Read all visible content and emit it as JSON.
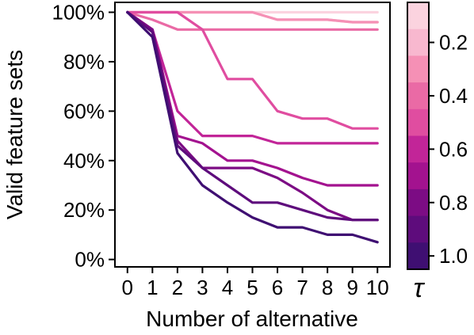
{
  "chart_data": {
    "type": "line",
    "xlabel": "Number of alternative",
    "ylabel": "Valid feature sets",
    "x": [
      0,
      1,
      2,
      3,
      4,
      5,
      6,
      7,
      8,
      9,
      10
    ],
    "x_tick_labels": [
      "0",
      "1",
      "2",
      "3",
      "4",
      "5",
      "6",
      "7",
      "8",
      "9",
      "10"
    ],
    "xlim": [
      -0.5,
      10.5
    ],
    "ylim": [
      -3,
      104
    ],
    "y_ticks": [
      0,
      20,
      40,
      60,
      80,
      100
    ],
    "y_tick_labels": [
      "0%",
      "20%",
      "40%",
      "60%",
      "80%",
      "100%"
    ],
    "grid": false,
    "series": [
      {
        "tau": 0.1,
        "color": "#fbd3df",
        "values": [
          100,
          100,
          100,
          100,
          100,
          100,
          100,
          100,
          100,
          100,
          100
        ]
      },
      {
        "tau": 0.2,
        "color": "#f8b8cf",
        "values": [
          100,
          100,
          100,
          100,
          100,
          100,
          97,
          97,
          97,
          96,
          96
        ]
      },
      {
        "tau": 0.3,
        "color": "#f590b5",
        "values": [
          100,
          100,
          100,
          100,
          100,
          100,
          97,
          97,
          97,
          96,
          96
        ]
      },
      {
        "tau": 0.4,
        "color": "#ea6aa5",
        "values": [
          100,
          97,
          93,
          93,
          93,
          93,
          93,
          93,
          93,
          93,
          93
        ]
      },
      {
        "tau": 0.5,
        "color": "#e04da0",
        "values": [
          100,
          100,
          100,
          93,
          73,
          73,
          60,
          57,
          57,
          53,
          53
        ]
      },
      {
        "tau": 0.6,
        "color": "#c22598",
        "values": [
          100,
          93,
          60,
          50,
          50,
          50,
          47,
          47,
          47,
          47,
          47
        ]
      },
      {
        "tau": 0.7,
        "color": "#a3128f",
        "values": [
          100,
          93,
          50,
          47,
          40,
          40,
          37,
          33,
          30,
          30,
          30
        ]
      },
      {
        "tau": 0.8,
        "color": "#7c0c84",
        "values": [
          100,
          93,
          48,
          37,
          37,
          37,
          33,
          27,
          20,
          16,
          16
        ]
      },
      {
        "tau": 0.9,
        "color": "#5e0c7c",
        "values": [
          100,
          92,
          46,
          37,
          30,
          23,
          23,
          20,
          17,
          16,
          16
        ]
      },
      {
        "tau": 1.0,
        "color": "#3f0f72",
        "values": [
          100,
          90,
          43,
          30,
          23,
          17,
          13,
          13,
          10,
          10,
          7
        ]
      }
    ],
    "colorbar": {
      "title": "τ",
      "range": [
        0.05,
        1.05
      ],
      "tick_values": [
        0.2,
        0.4,
        0.6,
        0.8,
        1.0
      ],
      "tick_labels": [
        "0.2",
        "0.4",
        "0.6",
        "0.8",
        "1.0"
      ],
      "colors": [
        "#fbd3df",
        "#f8b8cf",
        "#f590b5",
        "#ea6aa5",
        "#e04da0",
        "#c22598",
        "#a3128f",
        "#7c0c84",
        "#5e0c7c",
        "#3f0f72"
      ]
    }
  }
}
